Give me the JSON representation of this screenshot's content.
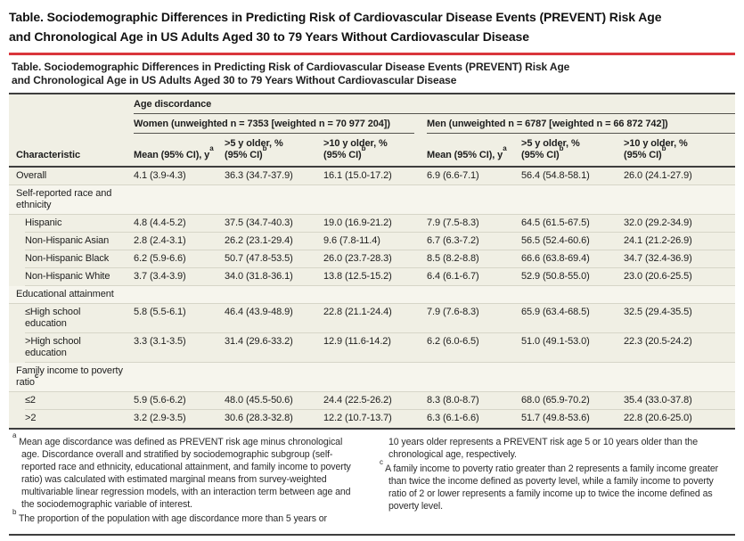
{
  "colors": {
    "accent_red": "#d9363c",
    "table_background": "#f0efe4",
    "section_row_background": "#f6f5ed",
    "rule_dark": "#3e3e3e"
  },
  "page": {
    "outer_title_line1": "Table.  Sociodemographic Differences in Predicting Risk of Cardiovascular Disease Events (PREVENT) Risk Age",
    "outer_title_line2": "and Chronological Age in US Adults Aged 30 to 79 Years Without Cardiovascular Disease"
  },
  "panel": {
    "title_line1": "Table. Sociodemographic Differences in Predicting Risk of Cardiovascular Disease Events (PREVENT) Risk Age",
    "title_line2": "and Chronological Age in US Adults Aged 30 to 79 Years Without Cardiovascular Disease"
  },
  "table": {
    "span_header": "Age discordance",
    "characteristic_header": "Characteristic",
    "groups": [
      {
        "label": "Women (unweighted n = 7353 [weighted n = 70 977 204])"
      },
      {
        "label": "Men (unweighted n = 6787 [weighted n = 66 872 742])"
      }
    ],
    "sub": {
      "mean": "Mean (95% CI), y",
      "mean_sup": "a",
      "gt5_line1": ">5 y older, %",
      "gt5_line2": "(95% CI)",
      "gt5_sup": "b",
      "gt10_line1": ">10 y older, %",
      "gt10_line2": "(95% CI)",
      "gt10_sup": "b"
    },
    "rows": [
      {
        "type": "data",
        "label": "Overall",
        "cells": [
          "4.1 (3.9-4.3)",
          "36.3 (34.7-37.9)",
          "16.1 (15.0-17.2)",
          "6.9 (6.6-7.1)",
          "56.4 (54.8-58.1)",
          "26.0 (24.1-27.9)"
        ]
      },
      {
        "type": "section",
        "label": "Self-reported race and ethnicity"
      },
      {
        "type": "data",
        "label": "Hispanic",
        "cells": [
          "4.8 (4.4-5.2)",
          "37.5 (34.7-40.3)",
          "19.0 (16.9-21.2)",
          "7.9 (7.5-8.3)",
          "64.5 (61.5-67.5)",
          "32.0 (29.2-34.9)"
        ]
      },
      {
        "type": "data",
        "label": "Non-Hispanic Asian",
        "cells": [
          "2.8 (2.4-3.1)",
          "26.2 (23.1-29.4)",
          "9.6 (7.8-11.4)",
          "6.7 (6.3-7.2)",
          "56.5 (52.4-60.6)",
          "24.1 (21.2-26.9)"
        ]
      },
      {
        "type": "data",
        "label": "Non-Hispanic Black",
        "cells": [
          "6.2 (5.9-6.6)",
          "50.7 (47.8-53.5)",
          "26.0 (23.7-28.3)",
          "8.5 (8.2-8.8)",
          "66.6 (63.8-69.4)",
          "34.7 (32.4-36.9)"
        ]
      },
      {
        "type": "data",
        "label": "Non-Hispanic White",
        "cells": [
          "3.7 (3.4-3.9)",
          "34.0 (31.8-36.1)",
          "13.8 (12.5-15.2)",
          "6.4 (6.1-6.7)",
          "52.9 (50.8-55.0)",
          "23.0 (20.6-25.5)"
        ]
      },
      {
        "type": "section",
        "label": "Educational attainment"
      },
      {
        "type": "data",
        "label": "≤High school education",
        "cells": [
          "5.8 (5.5-6.1)",
          "46.4 (43.9-48.9)",
          "22.8 (21.1-24.4)",
          "7.9 (7.6-8.3)",
          "65.9 (63.4-68.5)",
          "32.5 (29.4-35.5)"
        ]
      },
      {
        "type": "data",
        "label": ">High school education",
        "cells": [
          "3.3 (3.1-3.5)",
          "31.4 (29.6-33.2)",
          "12.9 (11.6-14.2)",
          "6.2 (6.0-6.5)",
          "51.0 (49.1-53.0)",
          "22.3 (20.5-24.2)"
        ]
      },
      {
        "type": "section",
        "label": "Family income to poverty ratio",
        "sup": "c"
      },
      {
        "type": "data",
        "label": "≤2",
        "cells": [
          "5.9 (5.6-6.2)",
          "48.0 (45.5-50.6)",
          "24.4 (22.5-26.2)",
          "8.3 (8.0-8.7)",
          "68.0 (65.9-70.2)",
          "35.4 (33.0-37.8)"
        ]
      },
      {
        "type": "data",
        "label": ">2",
        "cells": [
          "3.2 (2.9-3.5)",
          "30.6 (28.3-32.8)",
          "12.2 (10.7-13.7)",
          "6.3 (6.1-6.6)",
          "51.7 (49.8-53.6)",
          "22.8 (20.6-25.0)"
        ]
      }
    ]
  },
  "footnotes": {
    "a_marker": "a",
    "a_text": "Mean age discordance was defined as PREVENT risk age minus chronological age. Discordance overall and stratified by sociodemographic subgroup (self-reported race and ethnicity, educational attainment, and family income to poverty ratio) was calculated with estimated marginal means from survey-weighted multivariable linear regression models, with an interaction term between age and the sociodemographic variable of interest.",
    "b_marker": "b",
    "b_text_col1": "The proportion of the population with age discordance more than 5 years or",
    "b_text_col2": "10 years older represents a PREVENT risk age 5 or 10 years older than the chronological age, respectively.",
    "c_marker": "c",
    "c_text": "A family income to poverty ratio greater than 2 represents a family income greater than twice the income defined as poverty level, while a family income to poverty ratio of 2 or lower represents a family income up to twice the income defined as poverty level."
  }
}
